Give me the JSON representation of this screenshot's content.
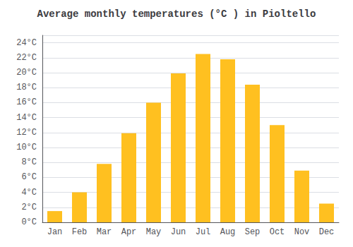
{
  "chart_data": {
    "type": "bar",
    "title": "Average monthly temperatures (°C ) in Pioltello",
    "categories": [
      "Jan",
      "Feb",
      "Mar",
      "Apr",
      "May",
      "Jun",
      "Jul",
      "Aug",
      "Sep",
      "Oct",
      "Nov",
      "Dec"
    ],
    "values": [
      1.5,
      4.0,
      7.8,
      11.9,
      16.0,
      19.9,
      22.5,
      21.8,
      18.4,
      13.0,
      6.9,
      2.5
    ],
    "color": "#FFC020",
    "ylim": [
      0,
      25
    ],
    "yticks": [
      {
        "value": 0,
        "label": "0°C"
      },
      {
        "value": 2,
        "label": "2°C"
      },
      {
        "value": 4,
        "label": "4°C"
      },
      {
        "value": 6,
        "label": "6°C"
      },
      {
        "value": 8,
        "label": "8°C"
      },
      {
        "value": 10,
        "label": "10°C"
      },
      {
        "value": 12,
        "label": "12°C"
      },
      {
        "value": 14,
        "label": "14°C"
      },
      {
        "value": 16,
        "label": "16°C"
      },
      {
        "value": 18,
        "label": "18°C"
      },
      {
        "value": 20,
        "label": "20°C"
      },
      {
        "value": 22,
        "label": "22°C"
      },
      {
        "value": 24,
        "label": "24°C"
      }
    ],
    "grid": true
  }
}
